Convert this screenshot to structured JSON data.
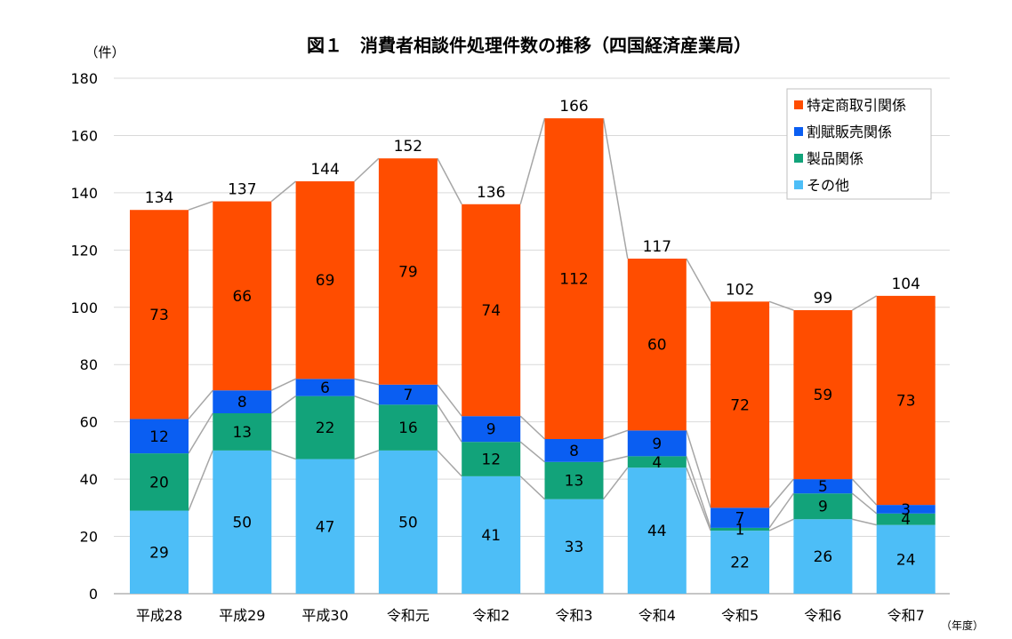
{
  "chart_data": {
    "type": "bar",
    "stacked": true,
    "title": "図１　消費者相談件処理件数の推移（四国経済産業局）",
    "ylabel": "（件）",
    "xlabel": "（年度）",
    "ylim": [
      0,
      180
    ],
    "yticks": [
      0,
      20,
      40,
      60,
      80,
      100,
      120,
      140,
      160,
      180
    ],
    "grid": true,
    "legend_position": "top-right",
    "categories": [
      "平成28",
      "平成29",
      "平成30",
      "令和元",
      "令和2",
      "令和3",
      "令和4",
      "令和5",
      "令和6",
      "令和7"
    ],
    "series": [
      {
        "name": "その他",
        "color": "#4DBEF7",
        "values": [
          29,
          50,
          47,
          50,
          41,
          33,
          44,
          22,
          26,
          24
        ]
      },
      {
        "name": "製品関係",
        "color": "#12A37A",
        "values": [
          20,
          13,
          22,
          16,
          12,
          13,
          4,
          1,
          9,
          4
        ]
      },
      {
        "name": "割賦販売関係",
        "color": "#0A5EF2",
        "values": [
          12,
          8,
          6,
          7,
          9,
          8,
          9,
          7,
          5,
          3
        ]
      },
      {
        "name": "特定商取引関係",
        "color": "#FF4D00",
        "values": [
          73,
          66,
          69,
          79,
          74,
          112,
          60,
          72,
          59,
          73
        ]
      }
    ],
    "totals": [
      134,
      137,
      144,
      152,
      136,
      166,
      117,
      102,
      99,
      104
    ],
    "connector_color": "#A6A6A6",
    "grid_color": "#D9D9D9"
  }
}
